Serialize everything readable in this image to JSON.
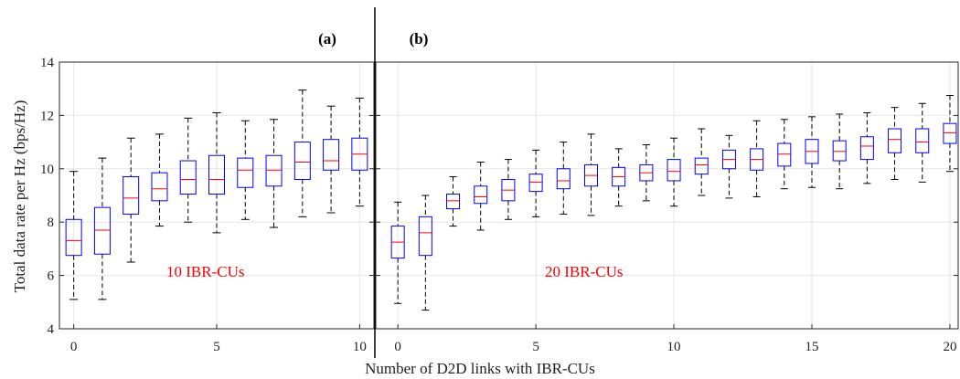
{
  "figure": {
    "xlabel": "Number of D2D links with IBR-CUs",
    "ylabel": "Total data rate per Hz (bps/Hz)"
  },
  "chart_data": [
    {
      "type": "box",
      "panel_label": "(a)",
      "annotation": "10 IBR-CUs",
      "ylim": [
        4,
        14
      ],
      "xlim": [
        -0.5,
        10.5
      ],
      "yticks": [
        4,
        6,
        8,
        10,
        12,
        14
      ],
      "xticks": [
        0,
        5,
        10
      ],
      "grid": true,
      "colors": {
        "box": "#0000ff",
        "median": "#ff0000",
        "whisker": "#000000",
        "grid": "#e6e6e6"
      },
      "boxes": [
        {
          "x": 0,
          "min": 5.1,
          "q1": 6.75,
          "median": 7.3,
          "q3": 8.1,
          "max": 9.9
        },
        {
          "x": 1,
          "min": 5.1,
          "q1": 6.8,
          "median": 7.7,
          "q3": 8.55,
          "max": 10.4
        },
        {
          "x": 2,
          "min": 6.5,
          "q1": 8.3,
          "median": 8.9,
          "q3": 9.7,
          "max": 11.15
        },
        {
          "x": 3,
          "min": 7.85,
          "q1": 8.8,
          "median": 9.25,
          "q3": 9.85,
          "max": 11.3
        },
        {
          "x": 4,
          "min": 8.0,
          "q1": 9.05,
          "median": 9.6,
          "q3": 10.3,
          "max": 11.9
        },
        {
          "x": 5,
          "min": 7.6,
          "q1": 9.05,
          "median": 9.6,
          "q3": 10.5,
          "max": 12.1
        },
        {
          "x": 6,
          "min": 8.1,
          "q1": 9.3,
          "median": 9.95,
          "q3": 10.4,
          "max": 11.8
        },
        {
          "x": 7,
          "min": 7.8,
          "q1": 9.35,
          "median": 9.95,
          "q3": 10.5,
          "max": 11.85
        },
        {
          "x": 8,
          "min": 8.2,
          "q1": 9.6,
          "median": 10.25,
          "q3": 11.0,
          "max": 12.95
        },
        {
          "x": 9,
          "min": 8.35,
          "q1": 9.95,
          "median": 10.3,
          "q3": 11.1,
          "max": 12.35
        },
        {
          "x": 10,
          "min": 8.6,
          "q1": 9.95,
          "median": 10.55,
          "q3": 11.15,
          "max": 12.65
        }
      ]
    },
    {
      "type": "box",
      "panel_label": "(b)",
      "annotation": "20 IBR-CUs",
      "ylim": [
        4,
        14
      ],
      "xlim": [
        -0.8,
        20.3
      ],
      "yticks": [
        4,
        6,
        8,
        10,
        12,
        14
      ],
      "xticks": [
        0,
        5,
        10,
        15,
        20
      ],
      "xticklabels": [
        "0",
        "5",
        "10",
        "15",
        "20"
      ],
      "grid": true,
      "colors": {
        "box": "#0000ff",
        "median": "#ff0000",
        "whisker": "#000000",
        "grid": "#e6e6e6"
      },
      "boxes": [
        {
          "x": 0,
          "min": 4.95,
          "q1": 6.65,
          "median": 7.25,
          "q3": 7.85,
          "max": 8.75
        },
        {
          "x": 1,
          "min": 4.7,
          "q1": 6.75,
          "median": 7.6,
          "q3": 8.2,
          "max": 9.0
        },
        {
          "x": 2,
          "min": 7.85,
          "q1": 8.5,
          "median": 8.8,
          "q3": 9.05,
          "max": 9.7
        },
        {
          "x": 3,
          "min": 7.7,
          "q1": 8.7,
          "median": 8.95,
          "q3": 9.35,
          "max": 10.25
        },
        {
          "x": 4,
          "min": 8.1,
          "q1": 8.8,
          "median": 9.2,
          "q3": 9.6,
          "max": 10.35
        },
        {
          "x": 5,
          "min": 8.2,
          "q1": 9.15,
          "median": 9.5,
          "q3": 9.8,
          "max": 10.7
        },
        {
          "x": 6,
          "min": 8.3,
          "q1": 9.25,
          "median": 9.55,
          "q3": 10.0,
          "max": 11.0
        },
        {
          "x": 7,
          "min": 8.25,
          "q1": 9.35,
          "median": 9.75,
          "q3": 10.15,
          "max": 11.3
        },
        {
          "x": 8,
          "min": 8.6,
          "q1": 9.35,
          "median": 9.7,
          "q3": 10.05,
          "max": 10.75
        },
        {
          "x": 9,
          "min": 8.8,
          "q1": 9.55,
          "median": 9.85,
          "q3": 10.15,
          "max": 10.9
        },
        {
          "x": 10,
          "min": 8.6,
          "q1": 9.55,
          "median": 9.9,
          "q3": 10.35,
          "max": 11.15
        },
        {
          "x": 11,
          "min": 9.0,
          "q1": 9.8,
          "median": 10.15,
          "q3": 10.4,
          "max": 11.5
        },
        {
          "x": 12,
          "min": 8.9,
          "q1": 10.0,
          "median": 10.35,
          "q3": 10.7,
          "max": 11.25
        },
        {
          "x": 13,
          "min": 8.95,
          "q1": 9.95,
          "median": 10.35,
          "q3": 10.75,
          "max": 11.8
        },
        {
          "x": 14,
          "min": 9.25,
          "q1": 10.1,
          "median": 10.55,
          "q3": 10.95,
          "max": 11.85
        },
        {
          "x": 15,
          "min": 9.3,
          "q1": 10.2,
          "median": 10.65,
          "q3": 11.1,
          "max": 11.95
        },
        {
          "x": 16,
          "min": 9.25,
          "q1": 10.3,
          "median": 10.65,
          "q3": 11.05,
          "max": 12.05
        },
        {
          "x": 17,
          "min": 9.45,
          "q1": 10.35,
          "median": 10.85,
          "q3": 11.2,
          "max": 12.1
        },
        {
          "x": 18,
          "min": 9.6,
          "q1": 10.6,
          "median": 11.1,
          "q3": 11.5,
          "max": 12.3
        },
        {
          "x": 19,
          "min": 9.5,
          "q1": 10.6,
          "median": 11.0,
          "q3": 11.5,
          "max": 12.45
        },
        {
          "x": 20,
          "min": 9.9,
          "q1": 10.95,
          "median": 11.35,
          "q3": 11.7,
          "max": 12.75
        }
      ]
    }
  ]
}
